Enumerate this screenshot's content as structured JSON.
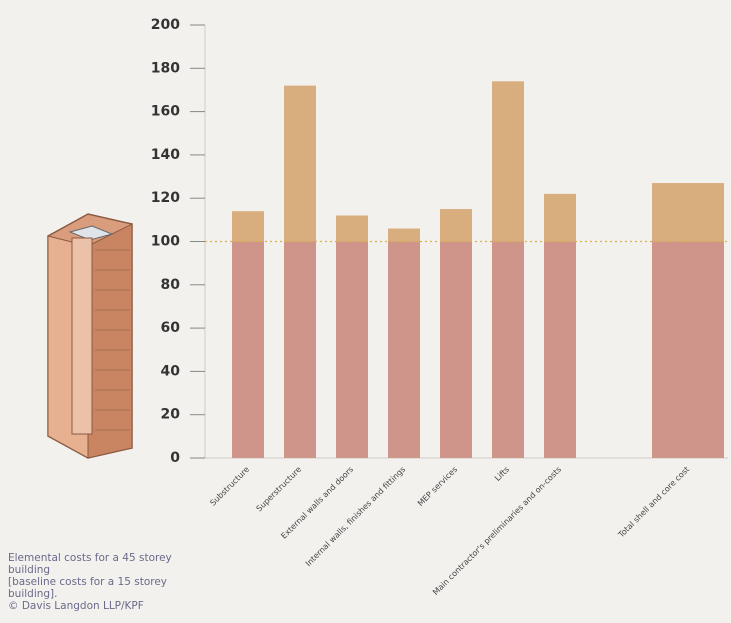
{
  "chart_data": {
    "type": "stacked-bar",
    "categories": [
      "Substructure",
      "Superstructure",
      "External walls and doors",
      "Internal walls, finishes and fittings",
      "MEP services",
      "Lifts",
      "Main contractor's preliminaries and on-costs",
      null,
      "Total shell and core cost"
    ],
    "series": [
      {
        "color": "#cf958b",
        "values": [
          100,
          100,
          100,
          100,
          100,
          100,
          100,
          null,
          100
        ]
      },
      {
        "color": "#d9ae7f",
        "values": [
          14,
          72,
          12,
          6,
          15,
          74,
          22,
          null,
          27
        ]
      }
    ],
    "reference_line": 100,
    "ylim": [
      0,
      200
    ],
    "yticks": [
      0,
      20,
      40,
      60,
      80,
      100,
      120,
      140,
      160,
      180,
      200
    ],
    "caption": [
      "Elemental costs for a 45 storey building",
      "[baseline costs for a 15 storey building].",
      "© Davis Langdon LLP/KPF"
    ]
  }
}
